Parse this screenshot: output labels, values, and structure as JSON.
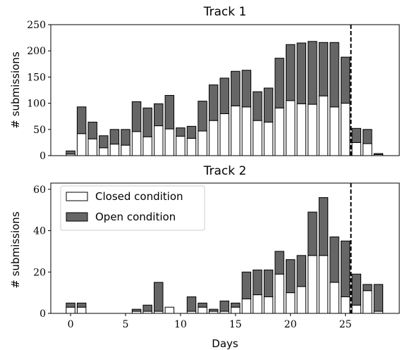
{
  "chart_data": [
    {
      "type": "bar",
      "stacked": true,
      "title": "Track 1",
      "xlabel": "",
      "ylabel": "# submissions",
      "xlim": [
        -1.8,
        29.9
      ],
      "ylim": [
        0,
        250
      ],
      "yticks": [
        "0",
        "50",
        "100",
        "150",
        "200",
        "250"
      ],
      "x": [
        0,
        1,
        2,
        3,
        4,
        5,
        6,
        7,
        8,
        9,
        10,
        11,
        12,
        13,
        14,
        15,
        16,
        17,
        18,
        19,
        20,
        21,
        22,
        23,
        24,
        25,
        26,
        27,
        28
      ],
      "series": [
        {
          "name": "Closed condition",
          "color": "#ffffff",
          "values": [
            3,
            42,
            32,
            15,
            22,
            20,
            46,
            36,
            57,
            51,
            37,
            33,
            47,
            67,
            80,
            95,
            93,
            67,
            64,
            91,
            105,
            99,
            98,
            114,
            93,
            100,
            25,
            23,
            2
          ]
        },
        {
          "name": "Open condition",
          "color": "#666666",
          "values": [
            6,
            51,
            32,
            23,
            28,
            30,
            57,
            55,
            42,
            64,
            16,
            23,
            57,
            68,
            68,
            66,
            70,
            55,
            65,
            95,
            107,
            116,
            120,
            102,
            123,
            88,
            27,
            27,
            2
          ]
        }
      ],
      "vline": {
        "x": 25.5,
        "style": "dashed"
      },
      "legend": "none"
    },
    {
      "type": "bar",
      "stacked": true,
      "title": "Track 2",
      "xlabel": "Days",
      "ylabel": "# submissions",
      "xlim": [
        -1.8,
        29.9
      ],
      "ylim": [
        0,
        63
      ],
      "yticks": [
        "0",
        "20",
        "40",
        "60"
      ],
      "xticks": [
        "0",
        "5",
        "10",
        "15",
        "20",
        "25"
      ],
      "x": [
        0,
        1,
        2,
        3,
        4,
        5,
        6,
        7,
        8,
        9,
        10,
        11,
        12,
        13,
        14,
        15,
        16,
        17,
        18,
        19,
        20,
        21,
        22,
        23,
        24,
        25,
        26,
        27,
        28
      ],
      "series": [
        {
          "name": "Closed condition",
          "color": "#ffffff",
          "values": [
            3,
            3,
            0,
            0,
            0,
            0,
            1,
            1,
            1,
            3,
            0,
            1,
            3,
            1,
            1,
            3,
            7,
            9,
            8,
            19,
            10,
            13,
            28,
            28,
            15,
            8,
            4,
            11,
            1
          ]
        },
        {
          "name": "Open condition",
          "color": "#666666",
          "values": [
            2,
            2,
            0,
            0,
            0,
            0,
            1,
            3,
            14,
            0,
            0,
            7,
            2,
            1,
            5,
            2,
            13,
            12,
            13,
            11,
            16,
            15,
            21,
            28,
            22,
            27,
            15,
            3,
            13
          ]
        }
      ],
      "vline": {
        "x": 25.5,
        "style": "dashed"
      },
      "legend": "top-left"
    }
  ]
}
